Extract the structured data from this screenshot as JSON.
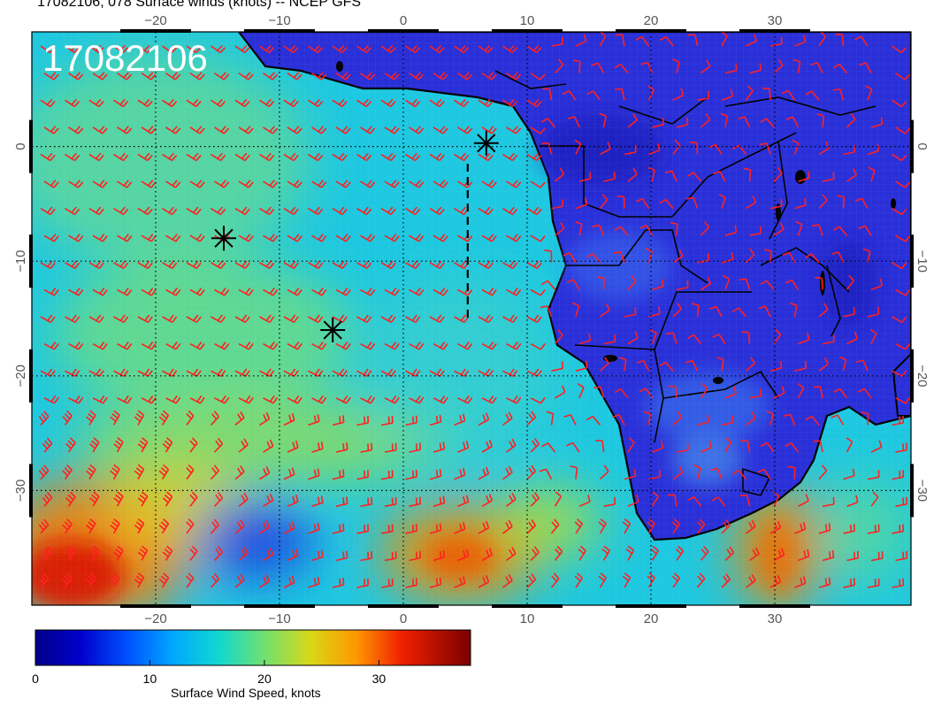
{
  "title": "17082106, 078 Surface winds (knots) -- NCEP GFS",
  "stamp": "17082106",
  "map": {
    "lon_range": [
      -30,
      41
    ],
    "lat_range": [
      -40,
      10
    ],
    "lon_ticks": [
      -20,
      -10,
      0,
      10,
      20,
      30
    ],
    "lat_ticks": [
      0,
      -10,
      -20,
      -30
    ],
    "lon_tick_labels": [
      "−20",
      "−10",
      "0",
      "10",
      "20",
      "30"
    ],
    "lat_tick_labels": [
      "0",
      "−10",
      "−20",
      "−30"
    ],
    "grid": "dotted",
    "markers": [
      {
        "symbol": "asterisk",
        "lon": -14.5,
        "lat": -8
      },
      {
        "symbol": "asterisk",
        "lon": -5.7,
        "lat": -16
      },
      {
        "symbol": "asterisk",
        "lon": 6.7,
        "lat": 0.3
      }
    ],
    "dashed_track": {
      "lon": [
        5.2,
        5.2
      ],
      "lat": [
        -1.5,
        -15
      ]
    },
    "colors": {
      "barbs": "#ff2020",
      "land_outline": "#000000"
    }
  },
  "colorbar": {
    "title": "Surface Wind Speed, knots",
    "range": [
      0,
      38
    ],
    "ticks": [
      0,
      10,
      20,
      30
    ],
    "tick_labels": [
      "0",
      "10",
      "20",
      "30"
    ],
    "stops": [
      {
        "v": 0,
        "c": "#00008a"
      },
      {
        "v": 4,
        "c": "#0000cc"
      },
      {
        "v": 8,
        "c": "#0050ff"
      },
      {
        "v": 12,
        "c": "#00a8ff"
      },
      {
        "v": 16,
        "c": "#10d8d0"
      },
      {
        "v": 20,
        "c": "#70e070"
      },
      {
        "v": 24,
        "c": "#d8d818"
      },
      {
        "v": 28,
        "c": "#ff9800"
      },
      {
        "v": 32,
        "c": "#f02000"
      },
      {
        "v": 38,
        "c": "#7a0000"
      }
    ]
  }
}
